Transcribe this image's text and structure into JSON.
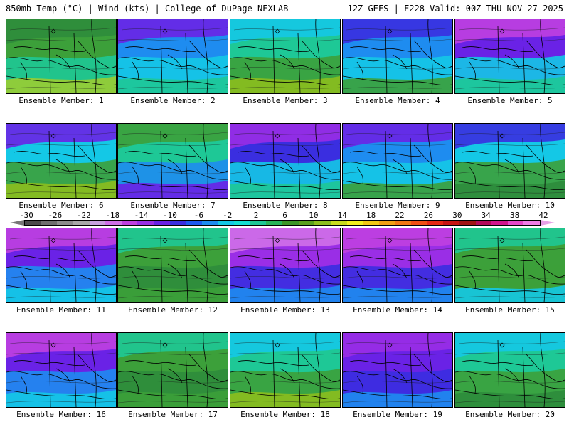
{
  "header": {
    "left": "850mb Temp (°C) | Wind (kts) | College of DuPage NEXLAB",
    "right": "12Z GEFS | F228 Valid: 00Z THU NOV 27 2025"
  },
  "colorbar": {
    "ticks": [
      "-30",
      "-26",
      "-22",
      "-18",
      "-14",
      "-10",
      "-6",
      "-2",
      "2",
      "6",
      "10",
      "14",
      "18",
      "22",
      "26",
      "30",
      "34",
      "38",
      "42"
    ],
    "colors": [
      "#4a4a4a",
      "#6e6e6e",
      "#8c8c8c",
      "#a8a8a8",
      "#c8a0e0",
      "#d070e8",
      "#c040e0",
      "#9a2ee6",
      "#6a22e6",
      "#3a2ee0",
      "#1e5af0",
      "#1e8cf0",
      "#14c8e6",
      "#14e0d2",
      "#1ec896",
      "#28b45a",
      "#3c9628",
      "#5aa01e",
      "#8cbe1e",
      "#c8dc1e",
      "#f0f01e",
      "#f0c814",
      "#f0a014",
      "#f07814",
      "#f05014",
      "#e62814",
      "#c81414",
      "#a01414",
      "#b40a5a",
      "#d2148c",
      "#e646c8",
      "#f07ce6"
    ],
    "left_arrow_color": "#777777",
    "right_arrow_color": "#e6a0e6"
  },
  "panels": [
    {
      "label": "Ensemble Member: 1",
      "colors": [
        "#2d8c3c",
        "#3ca03a",
        "#1ec896",
        "#9acd32"
      ]
    },
    {
      "label": "Ensemble Member: 2",
      "colors": [
        "#6a22e6",
        "#1e8cf0",
        "#14c8e6",
        "#1ec896"
      ]
    },
    {
      "label": "Ensemble Member: 3",
      "colors": [
        "#14c8e6",
        "#1ec896",
        "#3ca03a",
        "#8cbe1e"
      ]
    },
    {
      "label": "Ensemble Member: 4",
      "colors": [
        "#3a2ee0",
        "#1e8cf0",
        "#14c8e6",
        "#3ca03a"
      ]
    },
    {
      "label": "Ensemble Member: 5",
      "colors": [
        "#c040e0",
        "#6a22e6",
        "#14c8e6",
        "#1ec896"
      ]
    },
    {
      "label": "Ensemble Member: 6",
      "colors": [
        "#6a22e6",
        "#14c8e6",
        "#3ca03a",
        "#8cbe1e"
      ]
    },
    {
      "label": "Ensemble Member: 7",
      "colors": [
        "#3ca03a",
        "#1ec896",
        "#1e8cf0",
        "#6a22e6"
      ]
    },
    {
      "label": "Ensemble Member: 8",
      "colors": [
        "#9a2ee6",
        "#3a2ee0",
        "#14c8e6",
        "#1ec896"
      ]
    },
    {
      "label": "Ensemble Member: 9",
      "colors": [
        "#6a22e6",
        "#1e8cf0",
        "#14c8e6",
        "#3ca03a"
      ]
    },
    {
      "label": "Ensemble Member: 10",
      "colors": [
        "#3a2ee0",
        "#14c8e6",
        "#3ca03a",
        "#2d8c3c"
      ]
    },
    {
      "label": "Ensemble Member: 11",
      "colors": [
        "#c040e0",
        "#6a22e6",
        "#1e8cf0",
        "#14c8e6"
      ]
    },
    {
      "label": "Ensemble Member: 12",
      "colors": [
        "#1ec896",
        "#3ca03a",
        "#2d8c3c",
        "#3ca03a"
      ]
    },
    {
      "label": "Ensemble Member: 13",
      "colors": [
        "#d070e8",
        "#9a2ee6",
        "#3a2ee0",
        "#1e8cf0"
      ]
    },
    {
      "label": "Ensemble Member: 14",
      "colors": [
        "#c040e0",
        "#9a2ee6",
        "#3a2ee0",
        "#1e8cf0"
      ]
    },
    {
      "label": "Ensemble Member: 15",
      "colors": [
        "#1ec896",
        "#3ca03a",
        "#3ca03a",
        "#14c8e6"
      ]
    },
    {
      "label": "Ensemble Member: 16",
      "colors": [
        "#c040e0",
        "#6a22e6",
        "#1e8cf0",
        "#14c8e6"
      ]
    },
    {
      "label": "Ensemble Member: 17",
      "colors": [
        "#1ec896",
        "#3ca03a",
        "#2d8c3c",
        "#3ca03a"
      ]
    },
    {
      "label": "Ensemble Member: 18",
      "colors": [
        "#14c8e6",
        "#1ec896",
        "#3ca03a",
        "#8cbe1e"
      ]
    },
    {
      "label": "Ensemble Member: 19",
      "colors": [
        "#9a2ee6",
        "#6a22e6",
        "#3a2ee0",
        "#1e8cf0"
      ]
    },
    {
      "label": "Ensemble Member: 20",
      "colors": [
        "#14c8e6",
        "#1ec896",
        "#3ca03a",
        "#2d8c3c"
      ]
    }
  ]
}
